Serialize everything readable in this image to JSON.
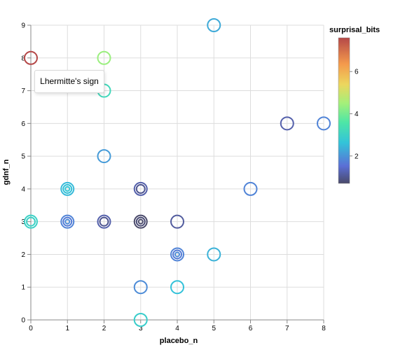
{
  "chart_data": {
    "type": "scatter",
    "xlabel": "placebo_n",
    "ylabel": "gdnf_n",
    "xlim": [
      0,
      8
    ],
    "ylim": [
      0,
      9
    ],
    "x_ticks": [
      0,
      1,
      2,
      3,
      4,
      5,
      6,
      7,
      8
    ],
    "y_ticks": [
      0,
      1,
      2,
      3,
      4,
      5,
      6,
      7,
      8,
      9
    ],
    "grid": true,
    "color_legend": {
      "title": "surprisal_bits",
      "ticks": [
        2,
        4,
        6
      ],
      "domain": [
        0.7,
        7.6
      ],
      "placement": "right",
      "scheme": "turbo"
    },
    "points": [
      {
        "x": 0,
        "y": 8,
        "color": 7.6
      },
      {
        "x": 2,
        "y": 8,
        "color": 4.4
      },
      {
        "x": 2,
        "y": 7,
        "color": 3.2
      },
      {
        "x": 5,
        "y": 9,
        "color": 2.3
      },
      {
        "x": 7,
        "y": 6,
        "color": 1.2
      },
      {
        "x": 8,
        "y": 6,
        "color": 1.8
      },
      {
        "x": 2,
        "y": 5,
        "color": 2.1
      },
      {
        "x": 1,
        "y": 4,
        "color": 2.5
      },
      {
        "x": 1,
        "y": 4,
        "color": 2.6
      },
      {
        "x": 1,
        "y": 4,
        "color": 2.7
      },
      {
        "x": 3,
        "y": 4,
        "color": 1.2
      },
      {
        "x": 3,
        "y": 4,
        "color": 1.0
      },
      {
        "x": 6,
        "y": 4,
        "color": 1.8
      },
      {
        "x": 0,
        "y": 3,
        "color": 3.0
      },
      {
        "x": 0,
        "y": 3,
        "color": 3.0
      },
      {
        "x": 1,
        "y": 3,
        "color": 1.8
      },
      {
        "x": 1,
        "y": 3,
        "color": 1.7
      },
      {
        "x": 1,
        "y": 3,
        "color": 1.9
      },
      {
        "x": 2,
        "y": 3,
        "color": 1.2
      },
      {
        "x": 2,
        "y": 3,
        "color": 1.0
      },
      {
        "x": 3,
        "y": 3,
        "color": 0.7
      },
      {
        "x": 3,
        "y": 3,
        "color": 0.8
      },
      {
        "x": 3,
        "y": 3,
        "color": 0.7
      },
      {
        "x": 4,
        "y": 3,
        "color": 1.1
      },
      {
        "x": 4,
        "y": 2,
        "color": 1.8
      },
      {
        "x": 4,
        "y": 2,
        "color": 1.7
      },
      {
        "x": 4,
        "y": 2,
        "color": 1.9
      },
      {
        "x": 5,
        "y": 2,
        "color": 2.4
      },
      {
        "x": 3,
        "y": 1,
        "color": 1.9
      },
      {
        "x": 4,
        "y": 1,
        "color": 2.6
      },
      {
        "x": 3,
        "y": 0,
        "color": 2.9
      }
    ]
  },
  "tooltip": {
    "text": "Lhermitte's sign"
  }
}
